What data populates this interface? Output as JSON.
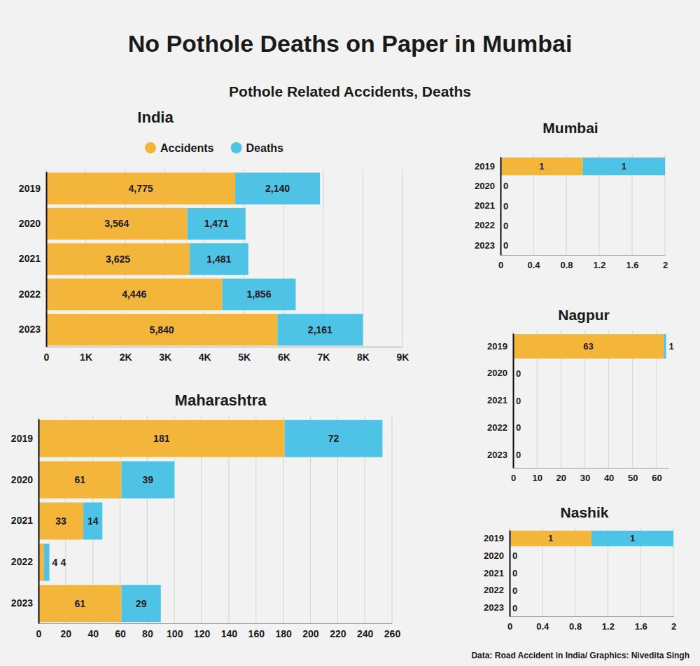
{
  "title": "No Pothole Deaths on Paper in Mumbai",
  "subtitle": "Pothole Related Accidents, Deaths",
  "source": "Data: Road Accident in India/ Graphics: Nivedita Singh",
  "chart_data": [
    {
      "type": "bar",
      "title": "India",
      "orientation": "horizontal",
      "stacked": true,
      "data_labels": true,
      "grid": true,
      "legend": "top",
      "categories": [
        "2019",
        "2020",
        "2021",
        "2022",
        "2023"
      ],
      "series": [
        {
          "name": "Accidents",
          "color": "#f4b63a",
          "values": [
            4775,
            3564,
            3625,
            4446,
            5840
          ],
          "value_labels": [
            "4,775",
            "3,564",
            "3,625",
            "4,446",
            "5,840"
          ]
        },
        {
          "name": "Deaths",
          "color": "#4fc3e6",
          "values": [
            2140,
            1471,
            1481,
            1856,
            2161
          ],
          "value_labels": [
            "2,140",
            "1,471",
            "1,481",
            "1,856",
            "2,161"
          ]
        }
      ],
      "xlim": [
        0,
        9000
      ],
      "xticks": [
        0,
        {
          "value": 1000,
          "label": "1K"
        },
        {
          "value": 2000,
          "label": "2K"
        },
        {
          "value": 3000,
          "label": "3K"
        },
        {
          "value": 4000,
          "label": "4K"
        },
        {
          "value": 5000,
          "label": "5K"
        },
        {
          "value": 6000,
          "label": "6K"
        },
        {
          "value": 7000,
          "label": "7K"
        },
        {
          "value": 8000,
          "label": "8K"
        },
        {
          "value": 9000,
          "label": "9K"
        }
      ]
    },
    {
      "type": "bar",
      "title": "Maharashtra",
      "orientation": "horizontal",
      "stacked": true,
      "data_labels": true,
      "grid": true,
      "categories": [
        "2019",
        "2020",
        "2021",
        "2022",
        "2023"
      ],
      "series": [
        {
          "color": "#f4b63a",
          "values": [
            181,
            61,
            33,
            4,
            61
          ]
        },
        {
          "color": "#4fc3e6",
          "values": [
            72,
            39,
            14,
            4,
            29
          ]
        }
      ],
      "xlim": [
        0,
        260
      ],
      "xticks": [
        0,
        20,
        40,
        60,
        80,
        100,
        120,
        140,
        160,
        180,
        200,
        220,
        240,
        260
      ]
    },
    {
      "type": "bar",
      "title": "Mumbai",
      "orientation": "horizontal",
      "stacked": true,
      "data_labels": true,
      "grid": true,
      "categories": [
        "2019",
        "2020",
        "2021",
        "2022",
        "2023"
      ],
      "series": [
        {
          "color": "#f4b63a",
          "values": [
            1,
            0,
            0,
            0,
            0
          ],
          "value_labels": [
            "1",
            null,
            null,
            null,
            null
          ]
        },
        {
          "color": "#4fc3e6",
          "values": [
            1,
            0,
            0,
            0,
            0
          ]
        }
      ],
      "xlim": [
        0,
        2
      ],
      "xticks": [
        0,
        0.4,
        0.8,
        1.2,
        1.6,
        2
      ]
    },
    {
      "type": "bar",
      "title": "Nagpur",
      "orientation": "horizontal",
      "stacked": true,
      "data_labels": true,
      "grid": true,
      "categories": [
        "2019",
        "2020",
        "2021",
        "2022",
        "2023"
      ],
      "series": [
        {
          "color": "#f4b63a",
          "values": [
            63,
            0,
            0,
            0,
            0
          ],
          "value_labels": [
            "63",
            null,
            null,
            null,
            null
          ]
        },
        {
          "color": "#4fc3e6",
          "values": [
            1,
            0,
            0,
            0,
            0
          ]
        }
      ],
      "xlim": [
        0,
        65
      ],
      "xticks": [
        0,
        10,
        20,
        30,
        40,
        50,
        60
      ]
    },
    {
      "type": "bar",
      "title": "Nashik",
      "orientation": "horizontal",
      "stacked": true,
      "data_labels": true,
      "grid": true,
      "categories": [
        "2019",
        "2020",
        "2021",
        "2022",
        "2023"
      ],
      "series": [
        {
          "color": "#f4b63a",
          "values": [
            1,
            0,
            0,
            0,
            0
          ],
          "value_labels": [
            "1",
            null,
            null,
            null,
            null
          ]
        },
        {
          "color": "#4fc3e6",
          "values": [
            1,
            0,
            0,
            0,
            0
          ]
        }
      ],
      "xlim": [
        0,
        2
      ],
      "xticks": [
        0,
        0.4,
        0.8,
        1.2,
        1.6,
        2
      ]
    }
  ]
}
